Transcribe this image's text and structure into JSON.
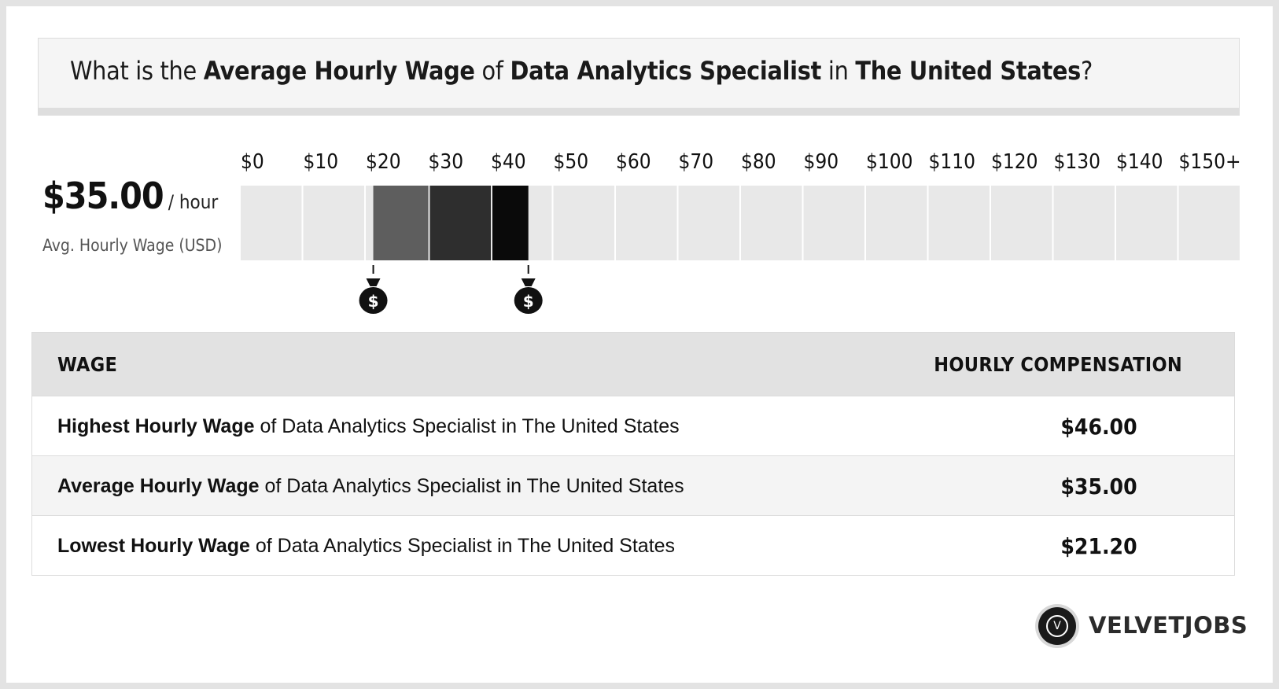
{
  "header": {
    "q_prefix": "What is the ",
    "q_metric": "Average Hourly Wage",
    "q_of": " of ",
    "q_job": "Data Analytics Specialist",
    "q_in": " in ",
    "q_place": "The United States",
    "q_suffix": "?"
  },
  "summary": {
    "value": "$35.00",
    "unit": "/ hour",
    "label": "Avg. Hourly Wage (USD)"
  },
  "chart_data": {
    "type": "bar",
    "title": "",
    "tick_labels": [
      "$0",
      "$10",
      "$20",
      "$30",
      "$40",
      "$50",
      "$60",
      "$70",
      "$80",
      "$90",
      "$100",
      "$110",
      "$120",
      "$130",
      "$140",
      "$150+"
    ],
    "x_min": 0,
    "x_max": 150,
    "range_low": 21.2,
    "range_high": 46.0,
    "average": 35.0,
    "shaded_range_colors": [
      "#5e5e5e",
      "#2e2e2e",
      "#0a0a0a"
    ],
    "track_color": "#e8e8e8",
    "marker_icon": "money-bag-icon"
  },
  "table": {
    "col_wage": "WAGE",
    "col_comp": "HOURLY COMPENSATION",
    "rows": [
      {
        "label_bold": "Highest Hourly Wage",
        "label_rest": " of Data Analytics Specialist in The United States",
        "value": "$46.00"
      },
      {
        "label_bold": "Average Hourly Wage",
        "label_rest": " of Data Analytics Specialist in The United States",
        "value": "$35.00"
      },
      {
        "label_bold": "Lowest Hourly Wage",
        "label_rest": " of Data Analytics Specialist in The United States",
        "value": "$21.20"
      }
    ]
  },
  "brand": {
    "name": "VELVETJOBS",
    "logo_letter": "V"
  }
}
